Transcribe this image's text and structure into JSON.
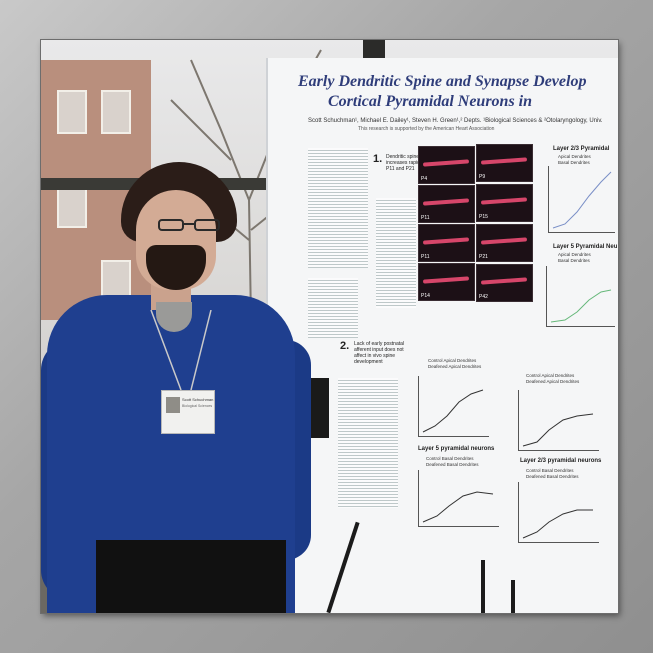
{
  "photo": {
    "subject": "man-with-poster"
  },
  "poster": {
    "title_line1": "Early Dendritic Spine and Synapse Develop",
    "title_line2": "Cortical Pyramidal Neurons in",
    "authors": "Scott Schuchman¹, Michael E. Dailey¹, Steven H. Green¹,² Depts. ¹Biological Sciences & ²Otolaryngology, Univ.",
    "funding_note": "This research is supported by the American Heart Association",
    "section1_number": "1.",
    "section1_text": "Dendritic spine density increases rapidly between P11 and P21",
    "section2_number": "2.",
    "section2_text": "Lack of early postnatal afferent input does not affect in vivo spine development",
    "micro_labels": [
      "P4",
      "P11",
      "P11",
      "P21",
      "P14",
      "P42",
      "P9",
      "P15"
    ],
    "plot_layer23_title": "Layer 2/3 Pyramidal",
    "plot_layer23_legend": [
      "Apical Dendrites",
      "Basal Dendrites"
    ],
    "plot_layer5_title": "Layer 5 Pyramidal Neu",
    "plot_layer5_legend": [
      "Apical Dendrites",
      "Basal Dendrites"
    ],
    "plot_layer5n_title": "Layer 5 pyramidal neurons",
    "plot_layer23n_title": "Layer 2/3 pyramidal neurons",
    "plot_control_legend": [
      "Control Apical Dendrites",
      "Deafened Apical Dendrites"
    ],
    "plot_basal_legend": [
      "Control Basal Dendrites",
      "Deafened Basal Dendrites"
    ]
  },
  "badge": {
    "name": "Scott Schuchman",
    "org": "Biological Sciences"
  }
}
